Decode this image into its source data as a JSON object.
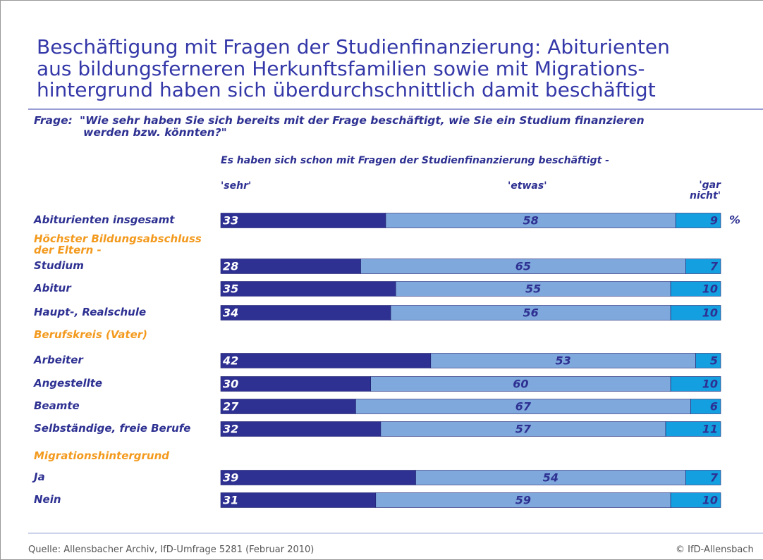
{
  "chart_data": {
    "type": "stacked_bar",
    "title": [
      "Beschäftigung mit Fragen der Studienfinanzierung: Abiturienten",
      "aus bildungsferneren Herkunftsfamilien sowie mit Migrations-",
      "hintergrund haben sich überdurchschnittlich damit beschäftigt"
    ],
    "question_label": "Frage:",
    "question": [
      "\"Wie sehr haben Sie sich bereits mit der Frage beschäftigt, wie Sie ein Studium finanzieren",
      "werden bzw. könnten?\""
    ],
    "subtitle": "Es haben sich schon mit Fragen der Studienfinanzierung beschäftigt -",
    "unit": "%",
    "categories": [
      "Abiturienten insgesamt",
      "Höchster Bildungsabschluss der Eltern -",
      "Studium",
      "Abitur",
      "Haupt-, Realschule",
      "Berufskreis (Vater)",
      "Arbeiter",
      "Angestellte",
      "Beamte",
      "Selbständige, freie Berufe",
      "Migrationshintergrund",
      "Ja",
      "Nein"
    ],
    "xlim": [
      0,
      100
    ],
    "series": [
      {
        "name": "'sehr'",
        "color": "#2e3192",
        "values": [
          33,
          null,
          28,
          35,
          34,
          null,
          42,
          30,
          27,
          32,
          null,
          39,
          31
        ]
      },
      {
        "name": "'etwas'",
        "color": "#7fa8dc",
        "values": [
          58,
          null,
          65,
          55,
          56,
          null,
          53,
          60,
          67,
          57,
          null,
          54,
          59
        ]
      },
      {
        "name": "'gar nicht'",
        "color": "#14a0e0",
        "values": [
          9,
          null,
          7,
          10,
          10,
          null,
          5,
          10,
          6,
          11,
          null,
          7,
          10
        ]
      }
    ],
    "source": "Quelle: Allensbacher Archiv, IfD-Umfrage 5281 (Februar 2010)",
    "copyright": "© IfD-Allensbach"
  }
}
